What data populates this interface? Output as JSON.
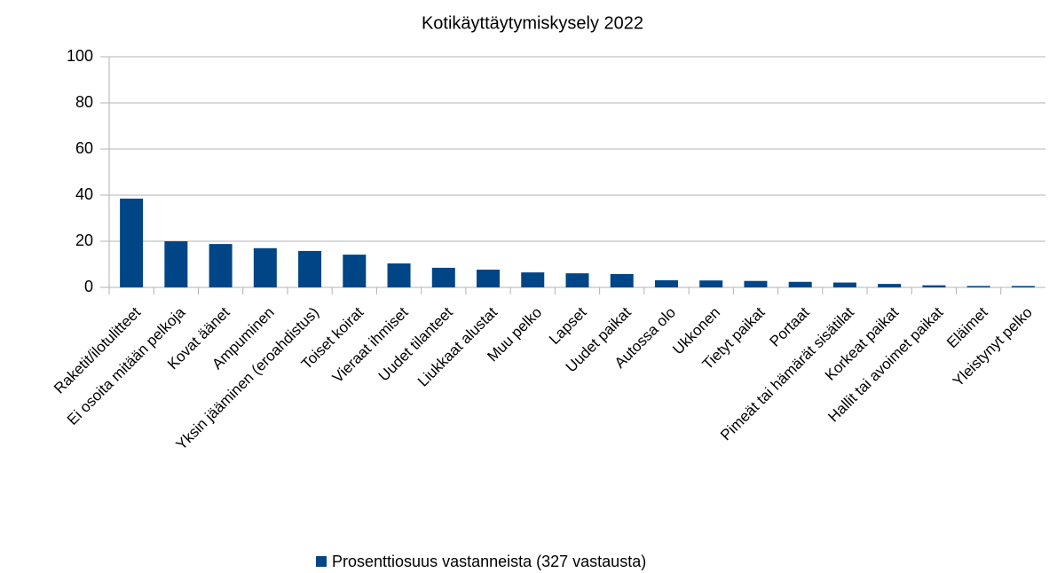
{
  "chart_data": {
    "type": "bar",
    "title": "Kotikäyttäytymiskysely 2022",
    "categories": [
      "Raketit/ilotulitteet",
      "Ei osoita mitään pelkoja",
      "Kovat äänet",
      "Ampuminen",
      "Yksin jääminen (eroahdistus)",
      "Toiset koirat",
      "Vieraat ihmiset",
      "Uudet tilanteet",
      "Liukkaat alustat",
      "Muu pelko",
      "Lapset",
      "Uudet paikat",
      "Autossa olo",
      "Ukkonen",
      "Tietyt paikat",
      "Portaat",
      "Pimeät tai hämärät sisätilat",
      "Korkeat paikat",
      "Hallit tai avoimet paikat",
      "Eläimet",
      "Yleistynyt pelko"
    ],
    "series": [
      {
        "name": "Prosenttiosuus vastanneista (327 vastausta)",
        "color": "#004586",
        "values": [
          38.5,
          20,
          18.8,
          17,
          15.8,
          14.2,
          10.4,
          8.5,
          7.7,
          6.5,
          6.1,
          5.8,
          3.1,
          3,
          2.8,
          2.4,
          2.1,
          1.5,
          0.9,
          0.6,
          0.6
        ]
      }
    ],
    "ylim": [
      0,
      100
    ],
    "yticks": [
      0,
      20,
      40,
      60,
      80,
      100
    ],
    "grid": true,
    "legend": "bottom"
  }
}
